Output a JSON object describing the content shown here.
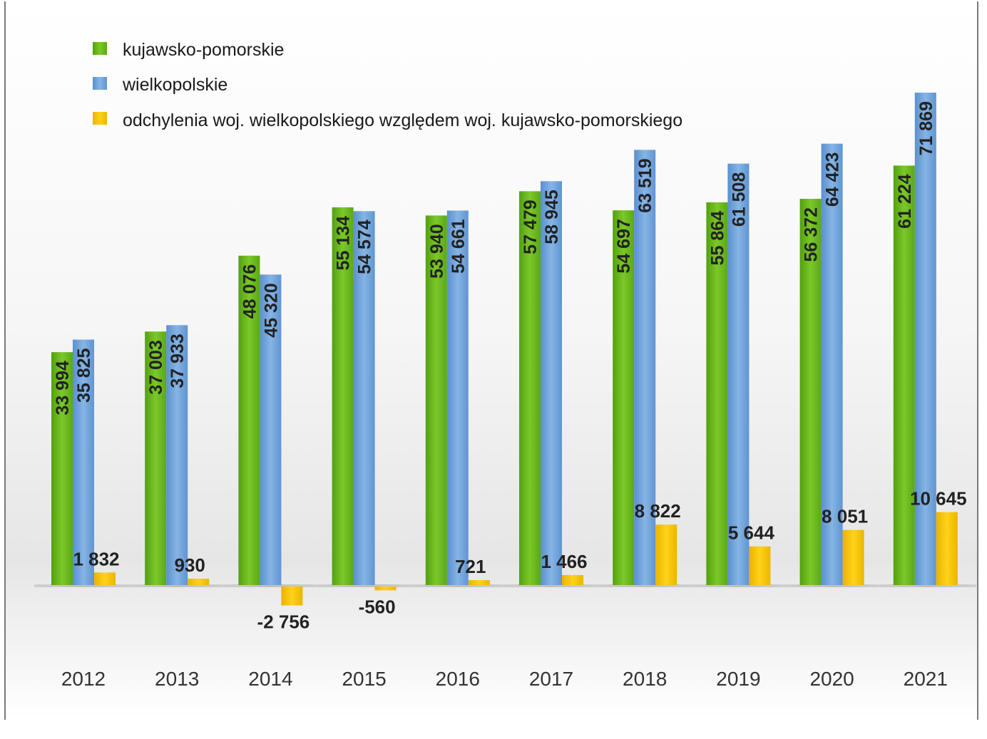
{
  "chart_data": {
    "type": "bar",
    "categories": [
      "2012",
      "2013",
      "2014",
      "2015",
      "2016",
      "2017",
      "2018",
      "2019",
      "2020",
      "2021"
    ],
    "series": [
      {
        "name": "kujawsko-pomorskie",
        "color": "#6fbe1f",
        "values": [
          33994,
          37003,
          48076,
          55134,
          53940,
          57479,
          54697,
          55864,
          56372,
          61224
        ],
        "labels": [
          "33 994",
          "37 003",
          "48 076",
          "55 134",
          "53 940",
          "57 479",
          "54 697",
          "55 864",
          "56 372",
          "61 224"
        ]
      },
      {
        "name": "wielkopolskie",
        "color": "#6fa3d9",
        "values": [
          35825,
          37933,
          45320,
          54574,
          54661,
          58945,
          63519,
          61508,
          64423,
          71869
        ],
        "labels": [
          "35 825",
          "37 933",
          "45 320",
          "54 574",
          "54 661",
          "58 945",
          "63 519",
          "61 508",
          "64 423",
          "71 869"
        ]
      },
      {
        "name": "odchylenia woj. wielkopolskiego względem woj. kujawsko-pomorskiego",
        "color": "#f5c000",
        "values": [
          1832,
          930,
          -2756,
          -560,
          721,
          1466,
          8822,
          5644,
          8051,
          10645
        ],
        "labels": [
          "1 832",
          "930",
          "-2 756",
          "-560",
          "721",
          "1 466",
          "8 822",
          "5 644",
          "8 051",
          "10 645"
        ]
      }
    ],
    "legend_position": "top-left",
    "grid": false
  }
}
